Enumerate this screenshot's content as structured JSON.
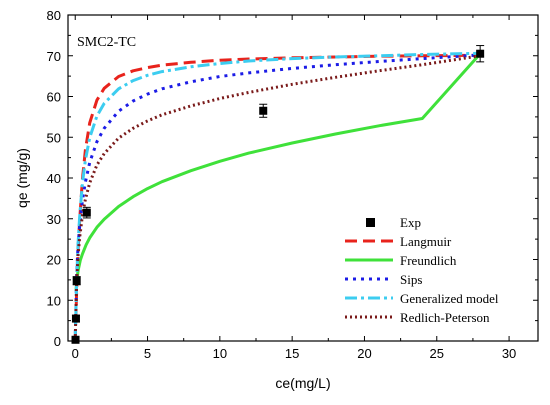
{
  "chart_data": {
    "type": "line",
    "annotation": "SMC2-TC",
    "xlabel": "ce(mg/L)",
    "ylabel": "qe (mg/g)",
    "xlim": [
      -0.5,
      32
    ],
    "ylim": [
      0,
      80
    ],
    "xticks": [
      0,
      5,
      10,
      15,
      20,
      25,
      30
    ],
    "yticks": [
      0,
      10,
      20,
      30,
      40,
      50,
      60,
      70,
      80
    ],
    "legend_position": "lower-right",
    "scatter": {
      "name": "Exp",
      "color": "#000000",
      "marker": "square",
      "points": [
        {
          "x": 0.02,
          "y": 0.3,
          "err": 0.5
        },
        {
          "x": 0.05,
          "y": 5.5,
          "err": 0.8
        },
        {
          "x": 0.1,
          "y": 14.8,
          "err": 1.0
        },
        {
          "x": 0.8,
          "y": 31.5,
          "err": 1.3
        },
        {
          "x": 13.0,
          "y": 56.5,
          "err": 1.6
        },
        {
          "x": 28.0,
          "y": 70.5,
          "err": 2.0
        }
      ]
    },
    "series": [
      {
        "name": "Langmuir",
        "color": "#e8231c",
        "dash": "12,6",
        "width": 3,
        "x": [
          0,
          0.1,
          0.2,
          0.3,
          0.5,
          0.7,
          1,
          1.5,
          2,
          3,
          4,
          5,
          6,
          8,
          10,
          12,
          15,
          18,
          21,
          24,
          28
        ],
        "y": [
          0,
          12.8,
          22.2,
          29.4,
          39.9,
          46.9,
          53.5,
          59.1,
          62.0,
          64.9,
          66.3,
          67.1,
          67.7,
          68.4,
          68.9,
          69.2,
          69.5,
          69.7,
          69.9,
          70.0,
          70.1
        ]
      },
      {
        "name": "Freundlich",
        "color": "#3fe13a",
        "dash": "",
        "width": 3,
        "x": [
          0.05,
          0.1,
          0.2,
          0.35,
          0.5,
          0.75,
          1,
          1.5,
          2,
          3,
          4,
          5,
          6,
          8,
          10,
          12,
          15,
          18,
          21,
          24,
          28
        ],
        "y": [
          12.3,
          14.6,
          17.3,
          19.8,
          21.4,
          23.6,
          25.3,
          27.9,
          29.9,
          33.0,
          35.4,
          37.4,
          39.1,
          41.8,
          44.1,
          46.1,
          48.6,
          50.8,
          52.8,
          54.6,
          70.5
        ]
      },
      {
        "name": "Sips",
        "color": "#1c1ce6",
        "dash": "3,5",
        "width": 3,
        "x": [
          0,
          0.1,
          0.2,
          0.3,
          0.5,
          0.7,
          1,
          1.5,
          2,
          3,
          4,
          5,
          6,
          8,
          10,
          12,
          15,
          18,
          21,
          24,
          28
        ],
        "y": [
          0,
          16.7,
          23.4,
          28.1,
          34.7,
          39.0,
          43.8,
          48.9,
          52.2,
          56.4,
          58.9,
          60.6,
          61.9,
          63.6,
          64.9,
          65.8,
          66.9,
          67.8,
          68.6,
          69.3,
          70.2
        ]
      },
      {
        "name": "Generalized model",
        "color": "#3ccdf0",
        "dash": "12,4,3,4",
        "width": 3,
        "x": [
          0,
          0.1,
          0.2,
          0.3,
          0.5,
          0.7,
          1,
          1.5,
          2,
          3,
          4,
          5,
          6,
          8,
          10,
          12,
          15,
          18,
          21,
          24,
          28
        ],
        "y": [
          0,
          15.5,
          24.0,
          30.3,
          38.9,
          44.4,
          49.9,
          55.2,
          58.3,
          61.9,
          63.9,
          65.2,
          66.1,
          67.3,
          68.1,
          68.7,
          69.3,
          69.7,
          70.0,
          70.3,
          70.6
        ]
      },
      {
        "name": "Redlich-Peterson",
        "color": "#7a1a1a",
        "dash": "2,3",
        "width": 3,
        "x": [
          0,
          0.1,
          0.2,
          0.3,
          0.5,
          0.7,
          1,
          1.5,
          2,
          3,
          4,
          5,
          6,
          8,
          10,
          12,
          15,
          18,
          21,
          24,
          28
        ],
        "y": [
          0,
          15.0,
          21.0,
          25.3,
          31.0,
          34.8,
          38.8,
          43.2,
          46.0,
          49.8,
          52.2,
          54.0,
          55.5,
          57.7,
          59.5,
          61.0,
          63.0,
          64.7,
          66.3,
          67.8,
          70.0
        ]
      }
    ]
  }
}
